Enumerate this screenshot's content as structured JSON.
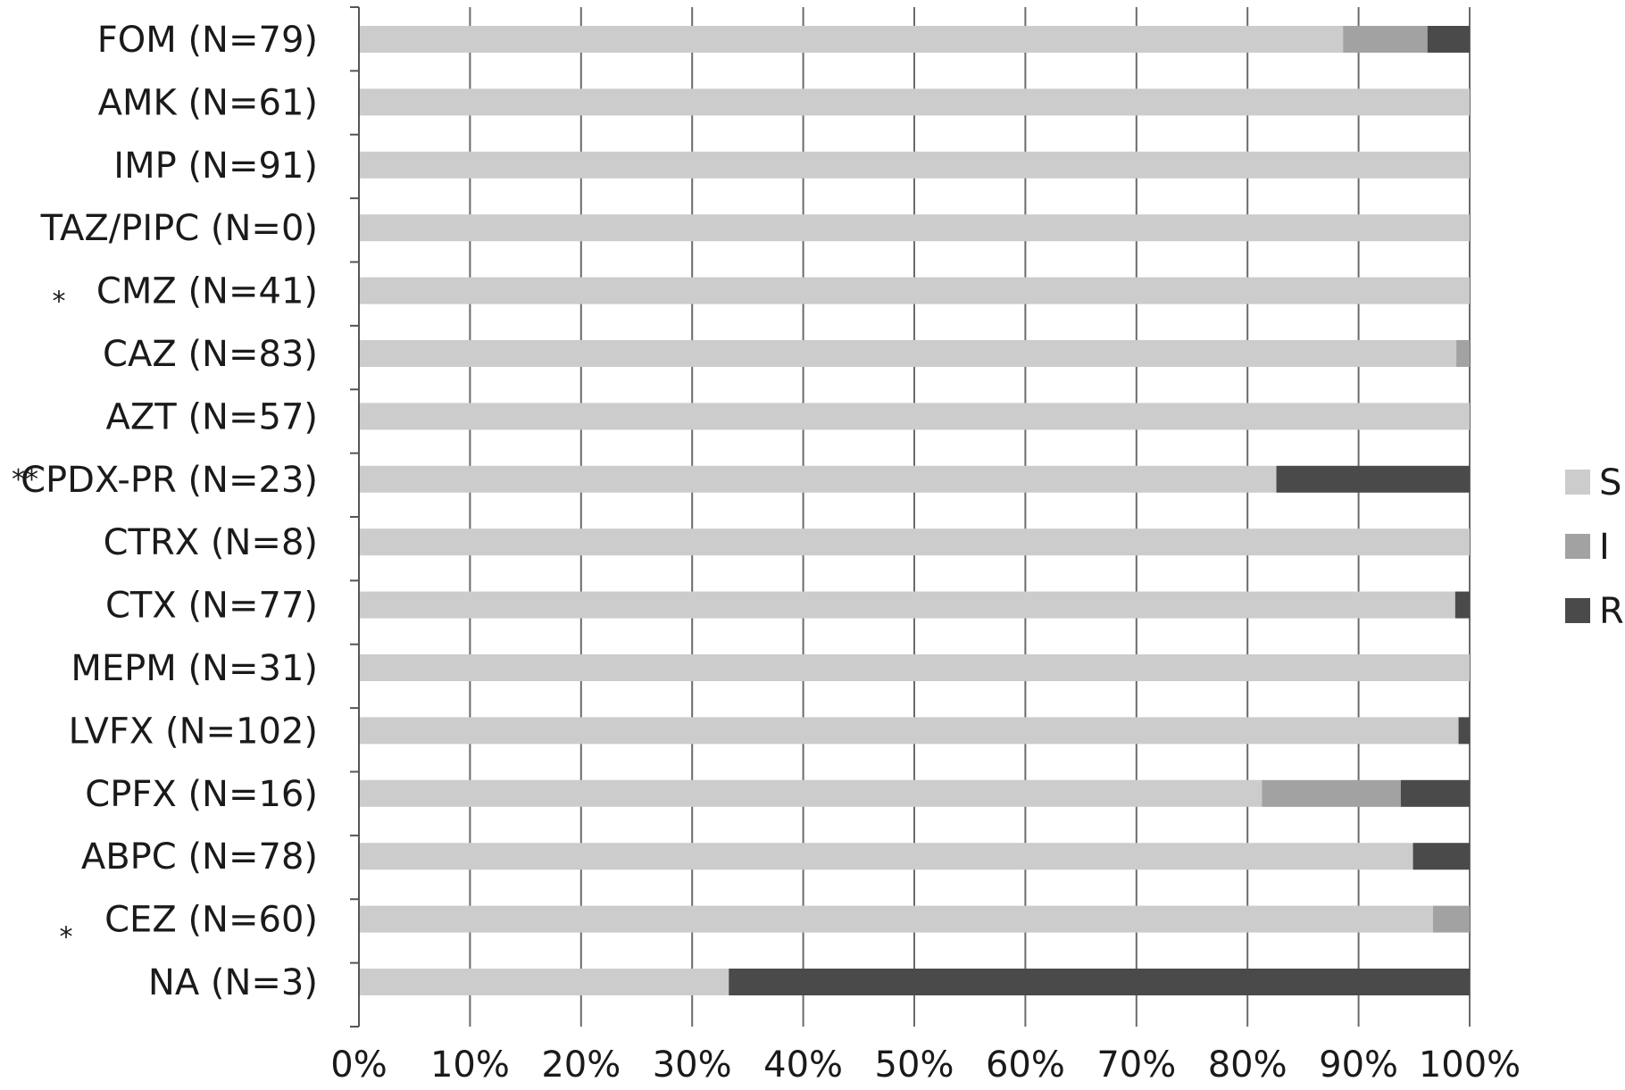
{
  "chart_data": {
    "type": "bar",
    "orientation": "horizontal",
    "stacked": "percent",
    "categories": [
      "FOM (N=79)",
      "AMK (N=61)",
      "IMP (N=91)",
      "TAZ/PIPC (N=0)",
      "CMZ (N=41)",
      "CAZ (N=83)",
      "AZT (N=57)",
      "CPDX-PR (N=23)",
      "CTRX (N=8)",
      "CTX (N=77)",
      "MEPM (N=31)",
      "LVFX (N=102)",
      "CPFX (N=16)",
      "ABPC (N=78)",
      "CEZ (N=60)",
      "NA (N=3)"
    ],
    "markers": [
      "",
      "",
      "",
      "",
      "*",
      "",
      "",
      "**",
      "",
      "",
      "",
      "",
      "",
      "",
      "*",
      ""
    ],
    "series": [
      {
        "name": "S",
        "color": "#cccccc",
        "values": [
          88.6,
          100,
          100,
          100,
          100,
          98.8,
          100,
          82.6,
          100,
          98.7,
          100,
          99.0,
          81.3,
          94.9,
          96.7,
          33.3
        ]
      },
      {
        "name": "I",
        "color": "#a2a2a2",
        "values": [
          7.6,
          0,
          0,
          0,
          0,
          1.2,
          0,
          0,
          0,
          0,
          0,
          0,
          12.5,
          0,
          3.3,
          0
        ]
      },
      {
        "name": "R",
        "color": "#4a4a4a",
        "values": [
          3.8,
          0,
          0,
          0,
          0,
          0,
          0,
          17.4,
          0,
          1.3,
          0,
          1.0,
          6.2,
          5.1,
          0,
          66.7
        ]
      }
    ],
    "xticks": [
      "0%",
      "10%",
      "20%",
      "30%",
      "40%",
      "50%",
      "60%",
      "70%",
      "80%",
      "90%",
      "100%"
    ],
    "xlim": [
      0,
      100
    ],
    "grid": true,
    "legend": "right",
    "title": "",
    "xlabel": "",
    "ylabel": ""
  }
}
